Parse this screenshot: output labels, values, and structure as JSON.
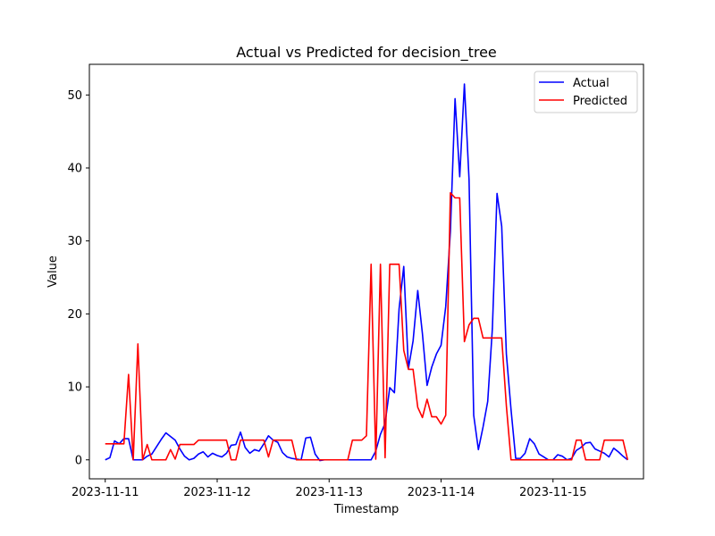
{
  "chart_data": {
    "type": "line",
    "title": "Actual vs Predicted for decision_tree",
    "xlabel": "Timestamp",
    "ylabel": "Value",
    "x_ticks": [
      "2023-11-11",
      "2023-11-12",
      "2023-11-13",
      "2023-11-14",
      "2023-11-15"
    ],
    "y_ticks": [
      0,
      10,
      20,
      30,
      40,
      50
    ],
    "xlim": [
      "2023-11-10T20:36",
      "2023-11-15T19:24"
    ],
    "ylim": [
      -2.6,
      54.2
    ],
    "legend_position": "top-right",
    "grid": false,
    "x_start": "2023-11-11T00:00",
    "x_step_hours": 1,
    "series": [
      {
        "name": "Actual",
        "color": "#0000ff",
        "values": [
          0.0,
          0.3,
          2.6,
          2.2,
          2.9,
          2.9,
          0.0,
          0.0,
          0.0,
          0.5,
          0.8,
          1.8,
          2.8,
          3.7,
          3.2,
          2.7,
          1.5,
          0.5,
          0.0,
          0.2,
          0.8,
          1.1,
          0.4,
          0.9,
          0.6,
          0.4,
          0.9,
          2.0,
          2.1,
          3.8,
          1.7,
          0.9,
          1.4,
          1.2,
          2.2,
          3.3,
          2.7,
          2.4,
          1.0,
          0.4,
          0.2,
          0.1,
          0.0,
          3.0,
          3.1,
          0.8,
          -0.1,
          0.0,
          0.0,
          0.0,
          0.0,
          0.0,
          0.0,
          0.0,
          0.0,
          0.0,
          0.0,
          0.0,
          1.2,
          3.5,
          5.0,
          9.9,
          9.2,
          20.7,
          26.5,
          12.5,
          16.3,
          23.2,
          17.3,
          10.2,
          12.7,
          14.5,
          15.7,
          21.0,
          31.3,
          49.5,
          38.8,
          51.5,
          38.4,
          6.1,
          1.4,
          4.5,
          8.0,
          18.0,
          36.5,
          32.0,
          14.5,
          6.9,
          0.2,
          0.2,
          0.9,
          2.9,
          2.2,
          0.8,
          0.4,
          0.0,
          0.0,
          0.7,
          0.5,
          0.0,
          0.2,
          1.3,
          1.7,
          2.3,
          2.4,
          1.5,
          1.2,
          0.9,
          0.4,
          1.6,
          1.1,
          0.5,
          0.0
        ]
      },
      {
        "name": "Predicted",
        "color": "#ff0000",
        "values": [
          2.2,
          2.2,
          2.2,
          2.2,
          2.2,
          11.7,
          0.0,
          15.9,
          0.0,
          2.1,
          0.0,
          0.0,
          0.0,
          0.0,
          1.4,
          0.1,
          2.1,
          2.1,
          2.1,
          2.1,
          2.7,
          2.7,
          2.7,
          2.7,
          2.7,
          2.7,
          2.7,
          0.0,
          0.0,
          2.7,
          2.7,
          2.7,
          2.7,
          2.7,
          2.7,
          0.4,
          2.7,
          2.7,
          2.7,
          2.7,
          2.7,
          0.0,
          0.0,
          0.0,
          0.0,
          0.0,
          0.0,
          0.0,
          0.0,
          0.0,
          0.0,
          0.0,
          0.0,
          2.7,
          2.7,
          2.7,
          3.3,
          26.8,
          0.1,
          26.8,
          0.3,
          26.8,
          26.8,
          26.8,
          15.0,
          12.4,
          12.4,
          7.2,
          5.8,
          8.3,
          5.9,
          5.9,
          4.9,
          6.1,
          36.6,
          35.9,
          35.9,
          16.2,
          18.5,
          19.4,
          19.4,
          16.7,
          16.7,
          16.7,
          16.7,
          16.7,
          7.4,
          0.0,
          0.0,
          0.0,
          0.0,
          0.0,
          0.0,
          0.0,
          0.0,
          0.0,
          0.0,
          0.0,
          0.0,
          0.0,
          0.0,
          2.7,
          2.7,
          0.0,
          0.0,
          0.0,
          0.0,
          2.7,
          2.7,
          2.7,
          2.7,
          2.7,
          0.0
        ]
      }
    ]
  }
}
